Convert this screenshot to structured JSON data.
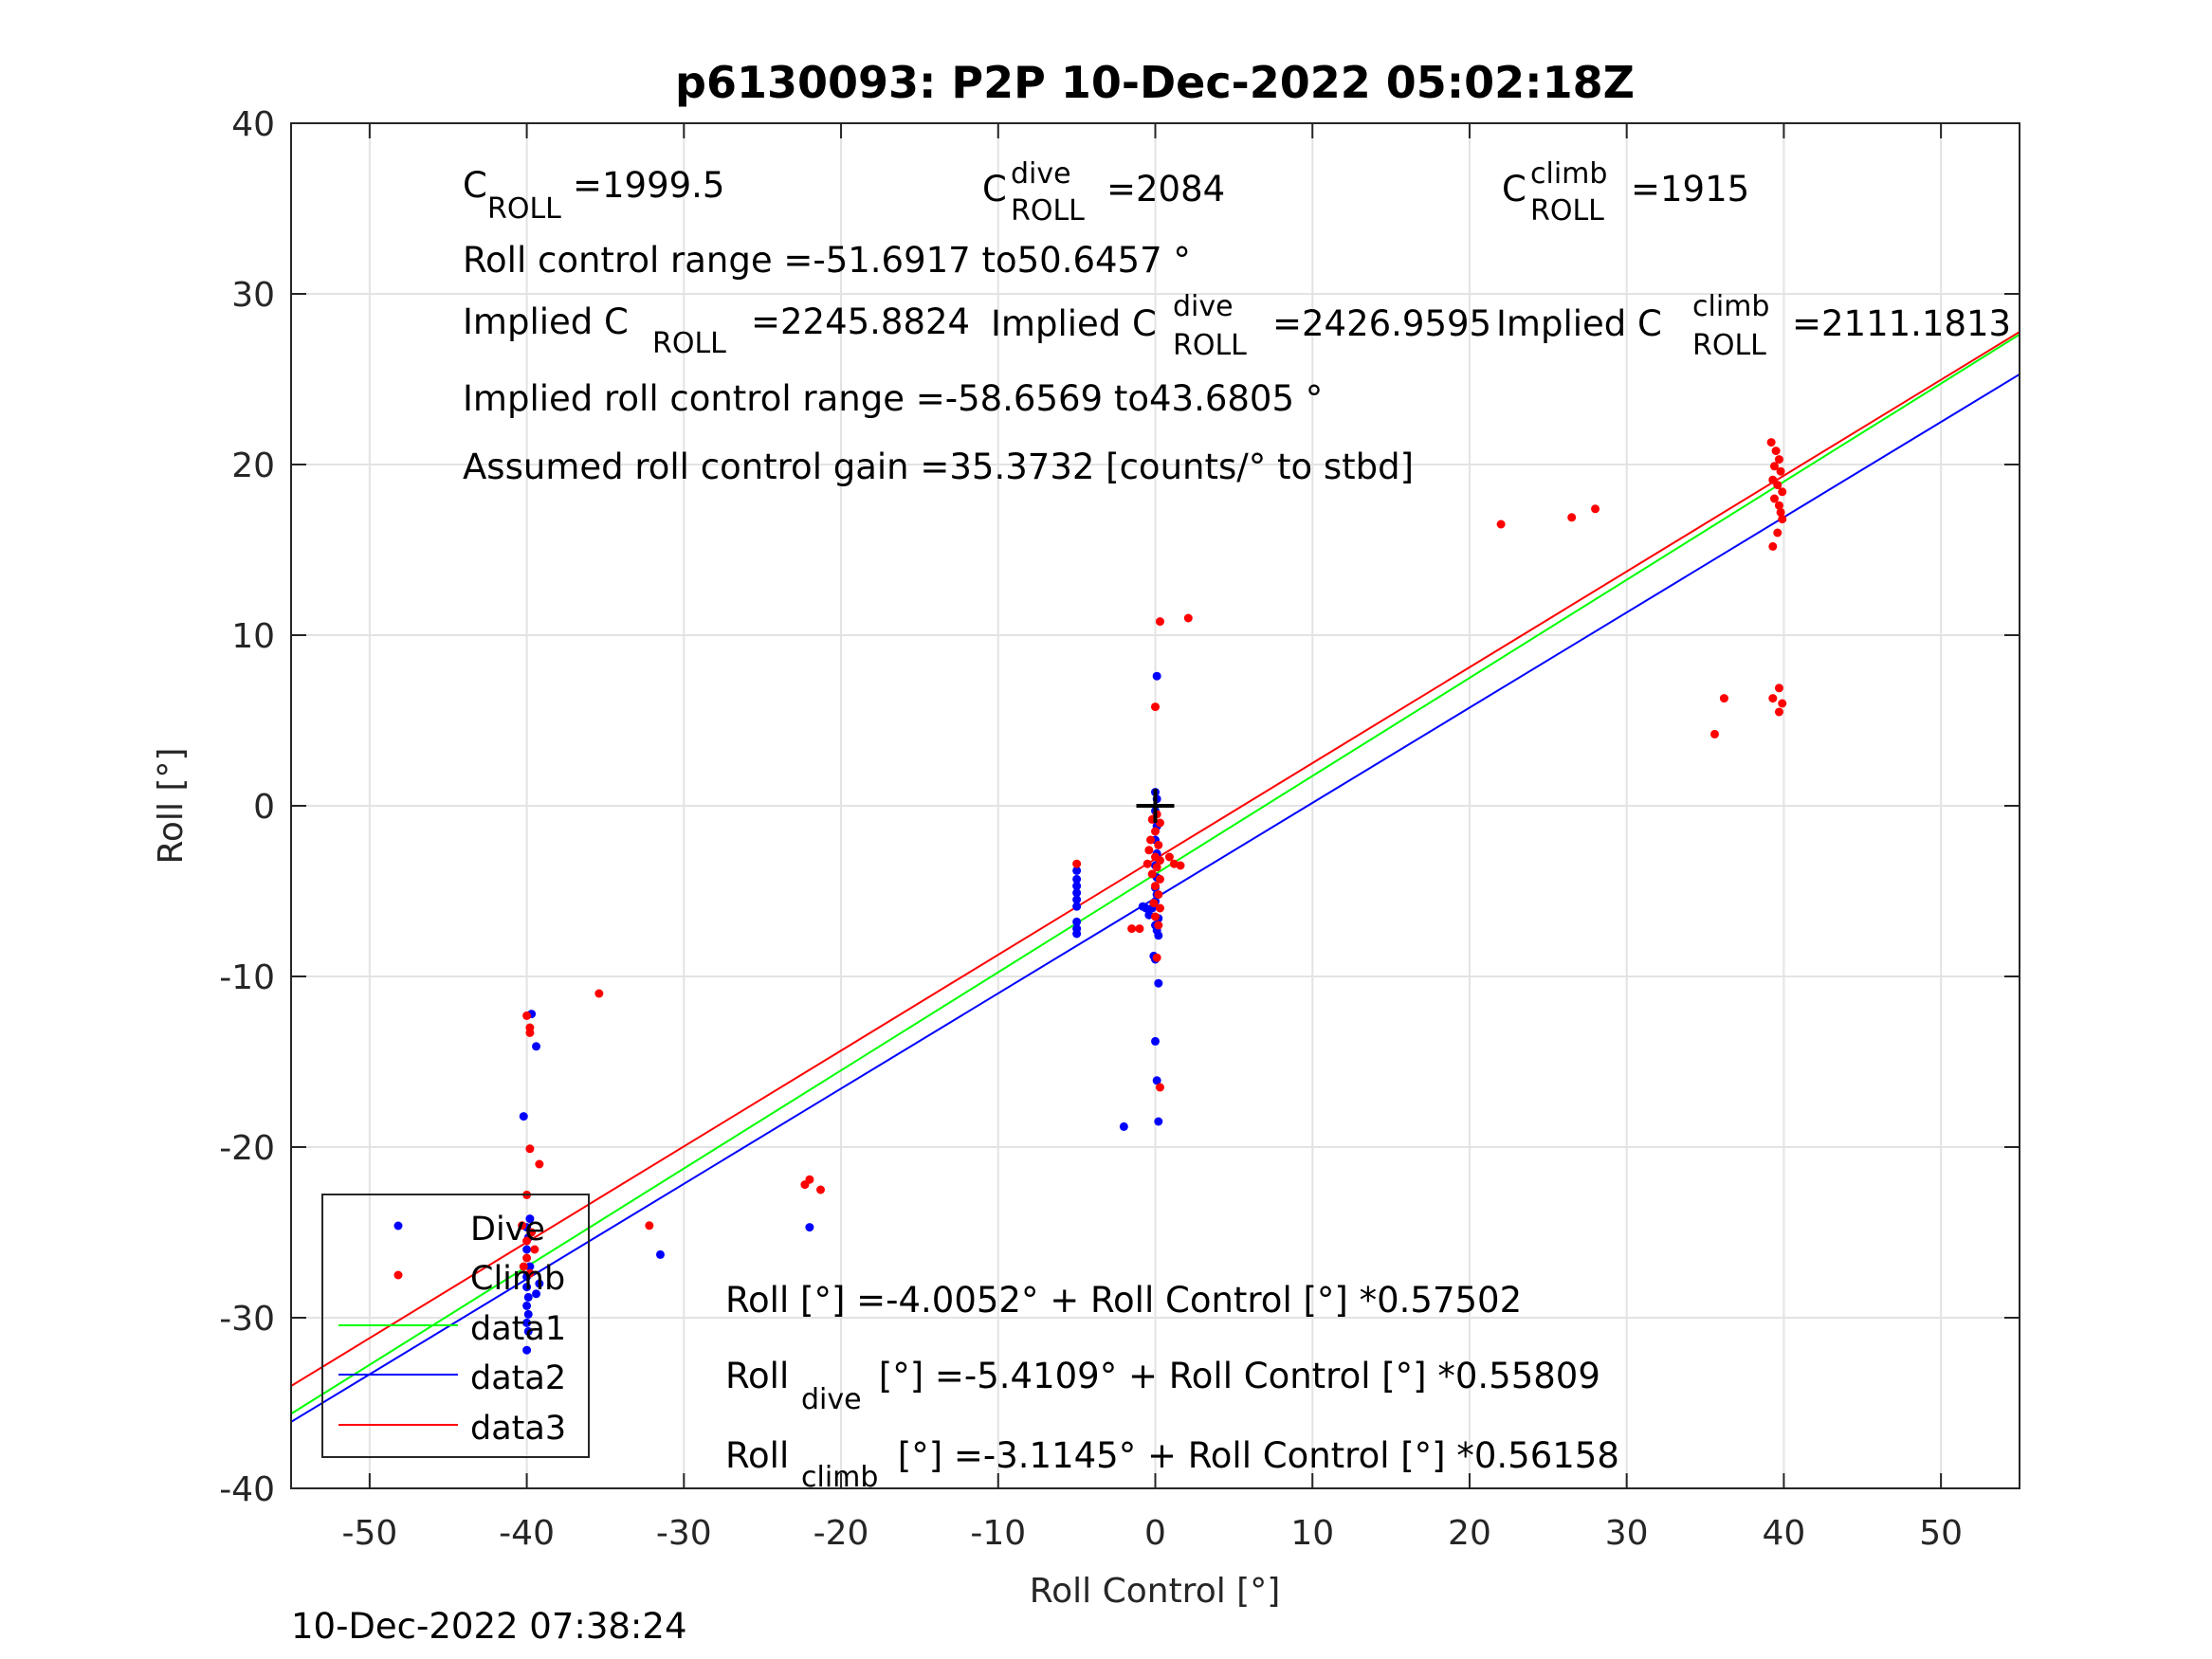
{
  "chart_data": {
    "type": "scatter",
    "title": "p6130093: P2P 10-Dec-2022 05:02:18Z",
    "xlabel": "Roll Control [°]",
    "ylabel": "Roll [°]",
    "xlim": [
      -55,
      55
    ],
    "ylim": [
      -40,
      40
    ],
    "xticks": [
      -50,
      -40,
      -30,
      -20,
      -10,
      0,
      10,
      20,
      30,
      40,
      50
    ],
    "yticks": [
      -40,
      -30,
      -20,
      -10,
      0,
      10,
      20,
      30,
      40
    ],
    "grid": true,
    "legend_position": "bottom-left",
    "timestamp": "10-Dec-2022 07:38:24",
    "annotations": {
      "c_roll": {
        "base": "C",
        "sub": "ROLL",
        "value": "=1999.5"
      },
      "c_roll_dive": {
        "base": "C",
        "sup": "dive",
        "sub": "ROLL",
        "value": "=2084"
      },
      "c_roll_climb": {
        "base": "C",
        "sup": "climb",
        "sub": "ROLL",
        "value": "=1915"
      },
      "roll_control_range": "Roll control range =-51.6917 to50.6457 °",
      "implied_c_roll": {
        "base": "Implied C",
        "sub": "ROLL",
        "value": "=2245.8824"
      },
      "implied_c_roll_dive": {
        "base": "Implied C",
        "sup": "dive",
        "sub": "ROLL",
        "value": "=2426.9595"
      },
      "implied_c_roll_climb": {
        "base": "Implied C",
        "sup": "climb",
        "sub": "ROLL",
        "value": "=2111.1813"
      },
      "implied_range": "Implied roll control range =-58.6569 to43.6805 °",
      "gain": "Assumed roll control gain =35.3732 [counts/° to stbd]",
      "eq_all": "Roll [°] =-4.0052° + Roll Control [°] *0.57502",
      "eq_dive": {
        "base": "Roll",
        "sub": "dive",
        "rest": " [°] =-5.4109° + Roll Control [°] *0.55809"
      },
      "eq_climb": {
        "base": "Roll",
        "sub": "climb",
        "rest": " [°] =-3.1145° + Roll Control [°] *0.56158"
      }
    },
    "series": [
      {
        "name": "Dive",
        "kind": "points",
        "color": "#0000ff",
        "points": [
          [
            0.1,
            7.6
          ],
          [
            0,
            0.8
          ],
          [
            0.1,
            0.4
          ],
          [
            0,
            -0.3
          ],
          [
            0.1,
            -1.2
          ],
          [
            0,
            -2
          ],
          [
            0.1,
            -2.8
          ],
          [
            0,
            -3.5
          ],
          [
            0.1,
            -4.2
          ],
          [
            0,
            -4.8
          ],
          [
            0.1,
            -5.2
          ],
          [
            0,
            -5.6
          ],
          [
            -0.2,
            -6
          ],
          [
            -0.6,
            -6
          ],
          [
            -0.4,
            -6.4
          ],
          [
            -0.8,
            -5.9
          ],
          [
            0.2,
            -6.6
          ],
          [
            0,
            -7
          ],
          [
            0.1,
            -7.3
          ],
          [
            0.2,
            -7.6
          ],
          [
            -0.1,
            -8.8
          ],
          [
            0,
            -9
          ],
          [
            0.2,
            -10.4
          ],
          [
            0,
            -13.8
          ],
          [
            0.1,
            -16.1
          ],
          [
            0.2,
            -18.5
          ],
          [
            -2,
            -18.8
          ],
          [
            -5,
            -3.8
          ],
          [
            -5,
            -4.3
          ],
          [
            -5,
            -4.7
          ],
          [
            -5,
            -5.1
          ],
          [
            -5,
            -5.5
          ],
          [
            -5,
            -5.9
          ],
          [
            -5,
            -6.8
          ],
          [
            -5,
            -7.2
          ],
          [
            -5,
            -7.5
          ],
          [
            -39.7,
            -12.2
          ],
          [
            -39.4,
            -14.1
          ],
          [
            -40.2,
            -18.2
          ],
          [
            -39.8,
            -24.2
          ],
          [
            -40,
            -24.7
          ],
          [
            -39.9,
            -25.3
          ],
          [
            -40,
            -26
          ],
          [
            -39.8,
            -27
          ],
          [
            -40,
            -27.6
          ],
          [
            -40,
            -28.2
          ],
          [
            -39.9,
            -28.8
          ],
          [
            -40,
            -29.3
          ],
          [
            -39.9,
            -29.8
          ],
          [
            -40,
            -30.3
          ],
          [
            -39.9,
            -30.8
          ],
          [
            -40,
            -31.9
          ],
          [
            -39.2,
            -28
          ],
          [
            -39.4,
            -28.6
          ],
          [
            -31.5,
            -26.3
          ],
          [
            -22,
            -24.7
          ]
        ]
      },
      {
        "name": "Climb",
        "kind": "points",
        "color": "#ff0000",
        "points": [
          [
            0.3,
            10.8
          ],
          [
            2.1,
            11
          ],
          [
            0,
            5.8
          ],
          [
            0.1,
            -0.5
          ],
          [
            -0.2,
            -0.8
          ],
          [
            0.3,
            -1
          ],
          [
            0,
            -1.5
          ],
          [
            -0.3,
            -2
          ],
          [
            0.2,
            -2.3
          ],
          [
            -0.4,
            -2.6
          ],
          [
            0,
            -3
          ],
          [
            0.3,
            -3.2
          ],
          [
            -0.5,
            -3.4
          ],
          [
            0.1,
            -3.6
          ],
          [
            -0.2,
            -4
          ],
          [
            0.3,
            -4.3
          ],
          [
            0,
            -4.7
          ],
          [
            0.2,
            -5.2
          ],
          [
            -0.1,
            -5.7
          ],
          [
            0.3,
            -6
          ],
          [
            0,
            -6.5
          ],
          [
            0.2,
            -7
          ],
          [
            -1.5,
            -7.2
          ],
          [
            -1,
            -7.2
          ],
          [
            0.1,
            -8.9
          ],
          [
            0.3,
            -16.5
          ],
          [
            1.2,
            -3.4
          ],
          [
            1.6,
            -3.5
          ],
          [
            0.9,
            -3
          ],
          [
            -5,
            -3.4
          ],
          [
            -40,
            -12.3
          ],
          [
            -39.8,
            -13
          ],
          [
            -39.8,
            -13.3
          ],
          [
            -39.8,
            -20.1
          ],
          [
            -39.2,
            -21
          ],
          [
            -40,
            -22.8
          ],
          [
            -40.3,
            -24.6
          ],
          [
            -39.7,
            -25
          ],
          [
            -40,
            -25.5
          ],
          [
            -39.5,
            -26
          ],
          [
            -40,
            -26.5
          ],
          [
            -40.2,
            -27
          ],
          [
            -39.8,
            -27.4
          ],
          [
            -35.4,
            -11
          ],
          [
            -32.2,
            -24.6
          ],
          [
            -22.3,
            -22.2
          ],
          [
            -22,
            -21.9
          ],
          [
            -21.3,
            -22.5
          ],
          [
            22,
            16.5
          ],
          [
            26.5,
            16.9
          ],
          [
            28,
            17.4
          ],
          [
            39.2,
            21.3
          ],
          [
            39.5,
            20.8
          ],
          [
            39.7,
            20.3
          ],
          [
            39.4,
            19.9
          ],
          [
            39.8,
            19.6
          ],
          [
            39.3,
            19.1
          ],
          [
            39.6,
            18.8
          ],
          [
            39.9,
            18.4
          ],
          [
            39.4,
            18
          ],
          [
            39.7,
            17.6
          ],
          [
            39.8,
            17.2
          ],
          [
            39.9,
            16.8
          ],
          [
            39.6,
            16
          ],
          [
            39.3,
            15.2
          ],
          [
            35.6,
            4.2
          ],
          [
            36.2,
            6.3
          ],
          [
            39.3,
            6.3
          ],
          [
            39.7,
            6.9
          ],
          [
            39.7,
            5.5
          ],
          [
            39.9,
            6
          ]
        ]
      },
      {
        "name": "data1",
        "kind": "line",
        "color": "#00ff00",
        "intercept": -4.0052,
        "slope": 0.57502
      },
      {
        "name": "data2",
        "kind": "line",
        "color": "#0000ff",
        "intercept": -5.4109,
        "slope": 0.55809
      },
      {
        "name": "data3",
        "kind": "line",
        "color": "#ff0000",
        "intercept": -3.1145,
        "slope": 0.56158
      }
    ],
    "marker": {
      "name": "origin-cross",
      "x": 0,
      "y": 0,
      "color": "#000000"
    }
  }
}
